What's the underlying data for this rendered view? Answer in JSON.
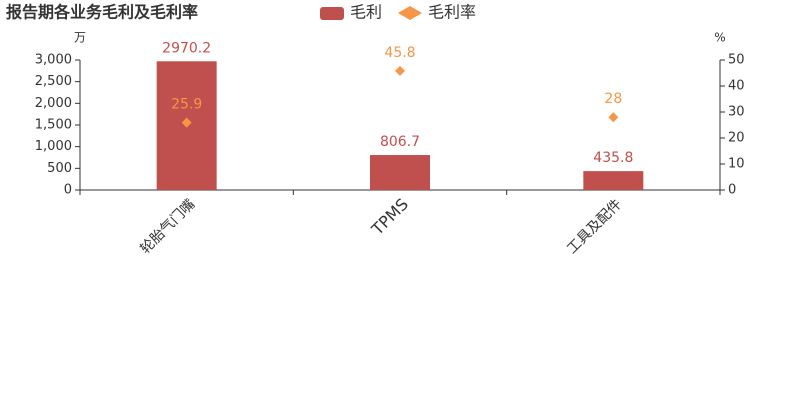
{
  "chart_data": {
    "type": "bar",
    "title": "报告期各业务毛利及毛利率",
    "y_unit": "万",
    "y2_unit": "%",
    "categories": [
      "轮胎气门嘴",
      "TPMS",
      "工具及配件"
    ],
    "series": [
      {
        "name": "毛利",
        "type": "bar",
        "color": "#c0504d",
        "values": [
          2970.2,
          806.7,
          435.8
        ]
      },
      {
        "name": "毛利率",
        "type": "scatter",
        "axis": "y2",
        "color": "#f79646",
        "values": [
          25.9,
          45.8,
          28
        ]
      }
    ],
    "ylim": [
      0,
      3000
    ],
    "yticks": [
      0,
      500,
      {
        "value": 1000,
        "label": "1,000"
      },
      {
        "value": 1500,
        "label": "1,500"
      },
      {
        "value": 2000,
        "label": "2,000"
      },
      {
        "value": 2500,
        "label": "2,500"
      },
      {
        "value": 3000,
        "label": "3,000"
      }
    ],
    "y2lim": [
      0,
      50
    ],
    "y2ticks": [
      0,
      10,
      20,
      30,
      40,
      50
    ]
  }
}
